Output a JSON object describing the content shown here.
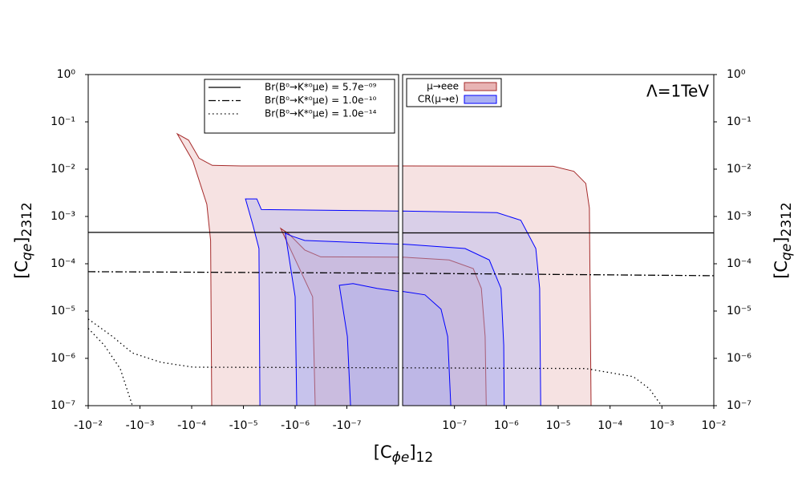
{
  "chart_data": {
    "type": "contour",
    "xlabel": [
      "[C",
      "ϕe",
      "]",
      "12"
    ],
    "ylabel": [
      "[C",
      "qe",
      "]",
      "2312"
    ],
    "annotation": "Λ=1TeV",
    "ylog": true,
    "ylim": [
      1e-07,
      1
    ],
    "yticks": [
      {
        "value": 1,
        "label": "10⁰"
      },
      {
        "value": 0.1,
        "label": "10⁻¹"
      },
      {
        "value": 0.01,
        "label": "10⁻²"
      },
      {
        "value": 0.001,
        "label": "10⁻³"
      },
      {
        "value": 0.0001,
        "label": "10⁻⁴"
      },
      {
        "value": 1e-05,
        "label": "10⁻⁵"
      },
      {
        "value": 1e-06,
        "label": "10⁻⁶"
      },
      {
        "value": 1e-07,
        "label": "10⁻⁷"
      }
    ],
    "panels": [
      {
        "xlim": [
          -0.01,
          -1e-08
        ],
        "xticks": [
          {
            "value": -0.01,
            "label": "-10⁻²"
          },
          {
            "value": -0.001,
            "label": "-10⁻³"
          },
          {
            "value": -0.0001,
            "label": "-10⁻⁴"
          },
          {
            "value": -1e-05,
            "label": "-10⁻⁵"
          },
          {
            "value": -1e-06,
            "label": "-10⁻⁶"
          },
          {
            "value": -1e-07,
            "label": "-10⁻⁷"
          }
        ]
      },
      {
        "xlim": [
          1e-08,
          0.01
        ],
        "xticks": [
          {
            "value": 1e-07,
            "label": "10⁻⁷"
          },
          {
            "value": 1e-06,
            "label": "10⁻⁶"
          },
          {
            "value": 1e-05,
            "label": "10⁻⁵"
          },
          {
            "value": 0.0001,
            "label": "10⁻⁴"
          },
          {
            "value": 0.001,
            "label": "10⁻³"
          },
          {
            "value": 0.01,
            "label": "10⁻²"
          }
        ]
      }
    ],
    "lines": [
      {
        "name": "Br(B⁰→K*⁰μe) = 5.7e⁻⁰⁹",
        "linestyle": "solid",
        "color": "#000000",
        "x": [
          -0.01,
          -1e-08,
          null,
          1e-08,
          0.01
        ],
        "values": [
          0.00046,
          0.00046,
          null,
          0.00045,
          0.00045
        ]
      },
      {
        "name": "Br(B⁰→K*⁰μe) = 1.0e⁻¹⁰",
        "linestyle": "dashdot",
        "color": "#000000",
        "x": [
          -0.01,
          -1e-08,
          null,
          1e-08,
          0.01
        ],
        "values": [
          6.8e-05,
          6.3e-05,
          null,
          6.3e-05,
          5.6e-05
        ]
      },
      {
        "name": "Br(B⁰→K*⁰μe) = 1.0e⁻¹⁴",
        "linestyle": "dotted",
        "color": "#000000",
        "x": [
          -0.01,
          -0.0034,
          -0.0014,
          -0.0004,
          -9.5e-05,
          -1e-08,
          null,
          -0.01,
          -0.0049,
          -0.0024,
          -0.0014,
          null,
          1e-08,
          3.4e-05,
          0.00028,
          0.00057,
          0.00098
        ],
        "values": [
          6.8e-06,
          2.9e-06,
          1.3e-06,
          8.3e-07,
          6.5e-07,
          6.3e-07,
          null,
          4.3e-06,
          1.9e-06,
          6e-07,
          1e-07,
          null,
          6.3e-07,
          6.1e-07,
          4.1e-07,
          2.3e-07,
          1e-07
        ]
      }
    ],
    "series": [
      {
        "name": "μ→eee",
        "color": "#e8b4b4",
        "edgecolor": "#a52a2a",
        "regions": [
          {
            "x": [
              -0.00019,
              -0.000115,
              -7.2e-05,
              -4e-05,
              -1.1e-05,
              -1e-08,
              -1e-08,
              -4.1e-05,
              -4.3e-05,
              -5.1e-05,
              -9.5e-05
            ],
            "values": [
              0.056,
              0.041,
              0.017,
              0.012,
              0.0117,
              0.0117,
              1e-07,
              1e-07,
              0.00031,
              0.0018,
              0.015
            ]
          },
          {
            "x": [
              1e-08,
              8e-06,
              2e-05,
              3.4e-05,
              4e-05,
              4.3e-05,
              1e-08
            ],
            "values": [
              0.0117,
              0.0115,
              0.009,
              0.005,
              0.0015,
              1e-07,
              1e-07
            ]
          },
          {
            "x": [
              -1.9e-06,
              -1.33e-06,
              -6.5e-07,
              -3.2e-07,
              -1e-08,
              -1e-08,
              -4.1e-07,
              -4.6e-07
            ],
            "values": [
              0.00056,
              0.00043,
              0.000195,
              0.00014,
              0.000138,
              1e-07,
              1e-07,
              2e-05
            ]
          },
          {
            "x": [
              1e-08,
              7.9e-08,
              2.3e-07,
              3.3e-07,
              3.9e-07,
              4.1e-07,
              1e-08
            ],
            "values": [
              0.000138,
              0.00012,
              7.9e-05,
              3e-05,
              2.9e-06,
              1e-07,
              1e-07
            ]
          }
        ]
      },
      {
        "name": "CR(μ→e)",
        "color": "#aab0f2",
        "edgecolor": "#0000ff",
        "regions": [
          {
            "x": [
              -9.1e-06,
              -5.5e-06,
              -4.5e-06,
              -1e-08,
              -1e-08,
              -4.8e-06,
              -5e-06,
              -6.6e-06
            ],
            "values": [
              0.00235,
              0.00235,
              0.0014,
              0.0013,
              1e-07,
              1e-07,
              0.00021,
              0.00068
            ]
          },
          {
            "x": [
              1e-08,
              6.6e-07,
              1.9e-06,
              3.7e-06,
              4.4e-06,
              4.6e-06,
              1e-08
            ],
            "values": [
              0.0013,
              0.0012,
              0.00083,
              0.00021,
              3e-05,
              1e-07,
              1e-07
            ]
          },
          {
            "x": [
              -1.55e-06,
              -1.12e-06,
              -6.5e-07,
              -1e-08,
              -1e-08,
              -9.3e-07,
              -1e-06
            ],
            "values": [
              0.00044,
              0.00038,
              0.00031,
              0.00026,
              1e-07,
              1e-07,
              2e-05
            ]
          },
          {
            "x": [
              1e-08,
              1.6e-07,
              4.7e-07,
              7.9e-07,
              8.9e-07,
              9.1e-07,
              1e-08
            ],
            "values": [
              0.00026,
              0.00021,
              0.00012,
              3e-05,
              1.9e-06,
              1e-07,
              1e-07
            ]
          },
          {
            "x": [
              -1.4e-07,
              -7.6e-08,
              -2.6e-08,
              -1e-08,
              -1e-08,
              -8.5e-08,
              -9.8e-08
            ],
            "values": [
              3.5e-05,
              3.8e-05,
              3e-05,
              2.6e-05,
              1e-07,
              1e-07,
              2.9e-06
            ]
          },
          {
            "x": [
              1e-08,
              2.7e-08,
              5.5e-08,
              7.4e-08,
              8.5e-08,
              1e-08
            ],
            "values": [
              2.6e-05,
              2.2e-05,
              1.1e-05,
              2.9e-06,
              1e-07,
              1e-07
            ]
          }
        ]
      }
    ]
  }
}
